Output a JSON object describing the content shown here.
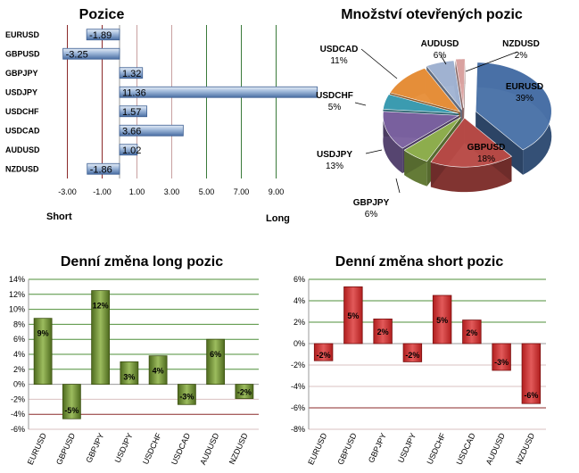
{
  "chart_data": [
    {
      "id": "pozice",
      "type": "bar",
      "orientation": "horizontal",
      "title": "Pozice",
      "categories": [
        "EURUSD",
        "GBPUSD",
        "GBPJPY",
        "USDJPY",
        "USDCHF",
        "USDCAD",
        "AUDUSD",
        "NZDUSD"
      ],
      "values": [
        -1.89,
        -3.25,
        1.32,
        11.36,
        1.57,
        3.66,
        1.02,
        -1.86
      ],
      "value_labels": [
        "-1.89",
        "-3.25",
        "1.32",
        "11.36",
        "1.57",
        "3.66",
        "1.02",
        "-1.86"
      ],
      "xlim": [
        -4,
        10
      ],
      "xticks": [
        -3,
        -1,
        1,
        3,
        5,
        7,
        9
      ],
      "xtick_labels": [
        "-3.00",
        "-1.00",
        "1.00",
        "3.00",
        "5.00",
        "7.00",
        "9.00"
      ],
      "left_label": "Short",
      "right_label": "Long",
      "bar_color": "#5a7fb3"
    },
    {
      "id": "mnozstvi",
      "type": "pie",
      "title": "Množství otevřených pozic",
      "slices": [
        {
          "label": "EURUSD",
          "value": 39,
          "pct": "39%",
          "color": "#4a72a8"
        },
        {
          "label": "GBPUSD",
          "value": 18,
          "pct": "18%",
          "color": "#b84a46"
        },
        {
          "label": "GBPJPY",
          "value": 6,
          "pct": "6%",
          "color": "#8fb04e"
        },
        {
          "label": "USDJPY",
          "value": 13,
          "pct": "13%",
          "color": "#7b62a0"
        },
        {
          "label": "USDCHF",
          "value": 5,
          "pct": "5%",
          "color": "#3c9db3"
        },
        {
          "label": "USDCAD",
          "value": 11,
          "pct": "11%",
          "color": "#e8903a"
        },
        {
          "label": "AUDUSD",
          "value": 6,
          "pct": "6%",
          "color": "#a2b4d3"
        },
        {
          "label": "NZDUSD",
          "value": 2,
          "pct": "2%",
          "color": "#dca4a2"
        }
      ]
    },
    {
      "id": "long",
      "type": "bar",
      "title": "Denní změna long pozic",
      "categories": [
        "EURUSD",
        "GBPUSD",
        "GBPJPY",
        "USDJPY",
        "USDCHF",
        "USDCAD",
        "AUDUSD",
        "NZDUSD"
      ],
      "values": [
        8.8,
        -4.6,
        12.5,
        3.0,
        3.8,
        -2.7,
        6.0,
        -1.9
      ],
      "value_labels": [
        "9%",
        "-5%",
        "12%",
        "3%",
        "4%",
        "-3%",
        "6%",
        "-2%"
      ],
      "ylim": [
        -6,
        14
      ],
      "yticks": [
        -6,
        -4,
        -2,
        0,
        2,
        4,
        6,
        8,
        10,
        12,
        14
      ],
      "ytick_labels": [
        "-6%",
        "-4%",
        "-2%",
        "0%",
        "2%",
        "4%",
        "6%",
        "8%",
        "10%",
        "12%",
        "14%"
      ],
      "bar_color": "#6b8a2e",
      "grid_color": "#4f8f3a"
    },
    {
      "id": "short",
      "type": "bar",
      "title": "Denní změna short pozic",
      "categories": [
        "EURUSD",
        "GBPUSD",
        "GBPJPY",
        "USDJPY",
        "USDCHF",
        "USDCAD",
        "AUDUSD",
        "NZDUSD"
      ],
      "values": [
        -1.6,
        5.3,
        2.3,
        -1.7,
        4.5,
        2.2,
        -2.5,
        -5.6
      ],
      "value_labels": [
        "-2%",
        "5%",
        "2%",
        "-2%",
        "5%",
        "2%",
        "-3%",
        "-6%"
      ],
      "ylim": [
        -8,
        6
      ],
      "yticks": [
        -8,
        -6,
        -4,
        -2,
        0,
        2,
        4,
        6
      ],
      "ytick_labels": [
        "-8%",
        "-6%",
        "-4%",
        "-2%",
        "0%",
        "2%",
        "4%",
        "6%"
      ],
      "bar_color": "#c83232",
      "grid_color": "#4f8f3a"
    }
  ]
}
